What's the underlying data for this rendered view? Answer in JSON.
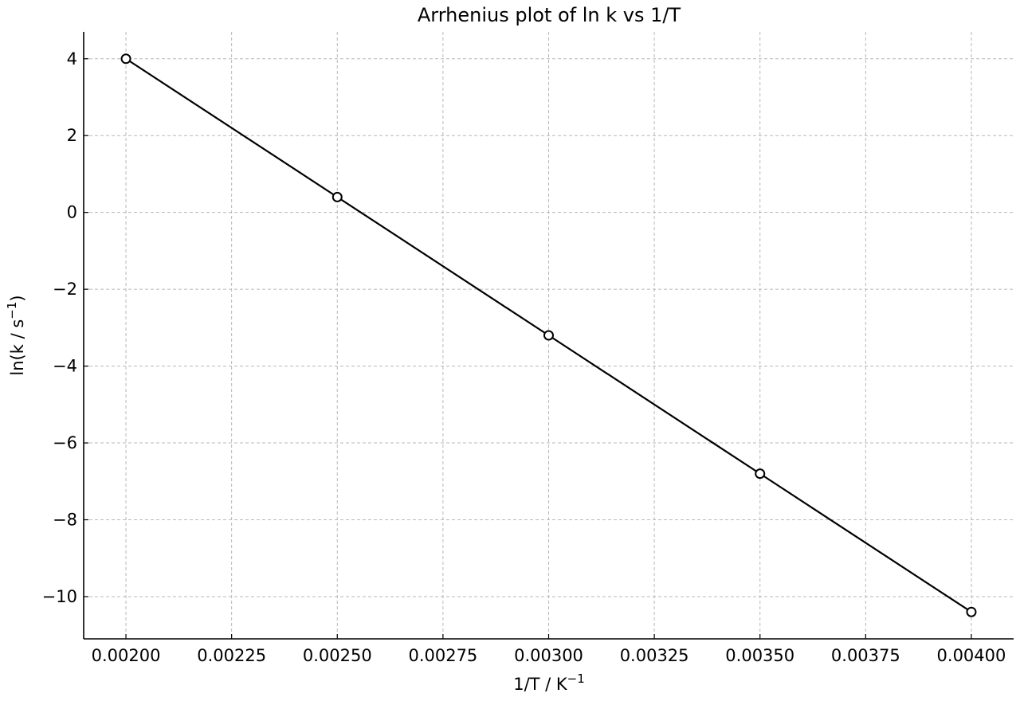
{
  "chart_data": {
    "type": "line",
    "title": "Arrhenius plot of ln k vs 1/T",
    "xlabel": {
      "base": "1/T / K",
      "sup": "−1"
    },
    "ylabel": {
      "base": "ln(k / s",
      "sup": "−1",
      "tail": ")"
    },
    "xlim": [
      0.0019,
      0.0041
    ],
    "ylim": [
      -11.1,
      4.7
    ],
    "x_ticks": [
      0.002,
      0.00225,
      0.0025,
      0.00275,
      0.003,
      0.00325,
      0.0035,
      0.00375,
      0.004
    ],
    "x_tick_labels": [
      "0.00200",
      "0.00225",
      "0.00250",
      "0.00275",
      "0.00300",
      "0.00325",
      "0.00350",
      "0.00375",
      "0.00400"
    ],
    "y_ticks": [
      -10,
      -8,
      -6,
      -4,
      -2,
      0,
      2,
      4
    ],
    "y_tick_labels": [
      "−10",
      "−8",
      "−6",
      "−4",
      "−2",
      "0",
      "2",
      "4"
    ],
    "grid": true,
    "series": [
      {
        "x": [
          0.002,
          0.0025,
          0.003,
          0.0035,
          0.004
        ],
        "y": [
          4.0,
          0.4,
          -3.2,
          -6.8,
          -10.4
        ]
      }
    ],
    "line_color": "#000000",
    "marker_fill": "#ffffff",
    "grid_color": "#b8b8b8"
  }
}
